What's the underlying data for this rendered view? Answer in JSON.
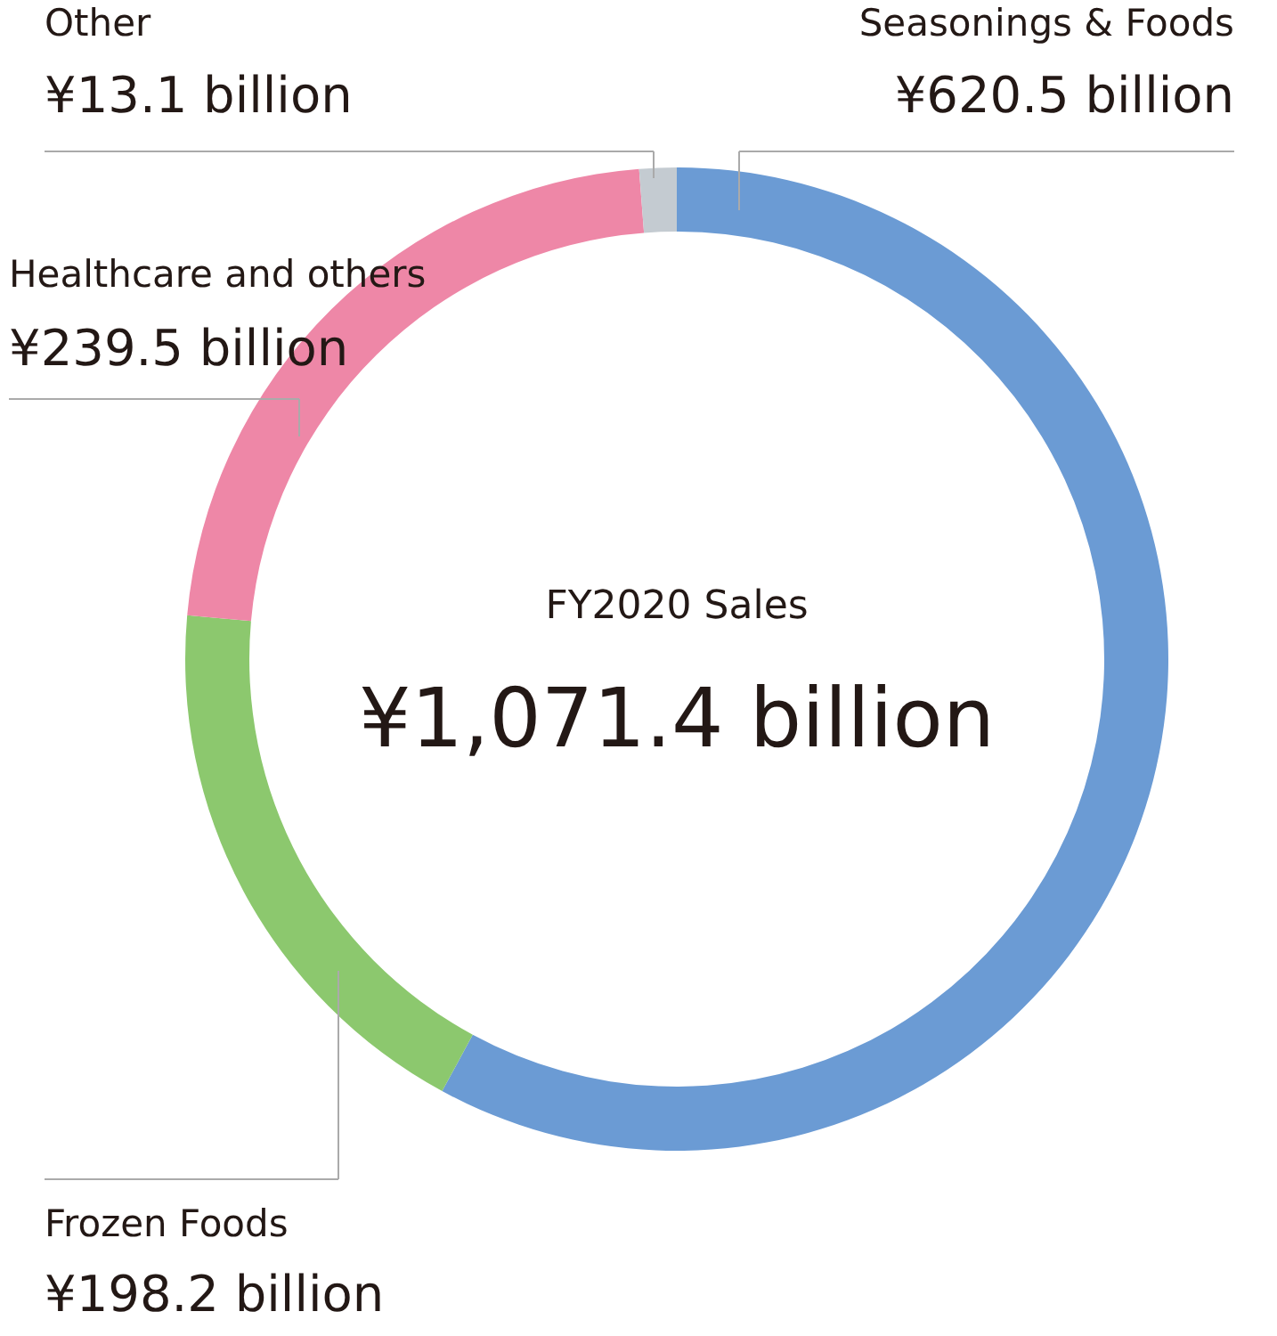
{
  "chart_data": {
    "type": "donut",
    "categories": [
      "Seasonings & Foods",
      "Frozen Foods",
      "Healthcare and others",
      "Other"
    ],
    "values": [
      620.5,
      198.2,
      239.5,
      13.1
    ],
    "colors": [
      "#6b9bd4",
      "#8cc86e",
      "#ee87a7",
      "#c4cbd1"
    ],
    "value_labels": [
      "¥620.5 billion",
      "¥198.2 billion",
      "¥239.5 billion",
      "¥13.1 billion"
    ],
    "annotations": [
      "FY2020 Sales",
      "¥1,071.4 billion"
    ]
  }
}
